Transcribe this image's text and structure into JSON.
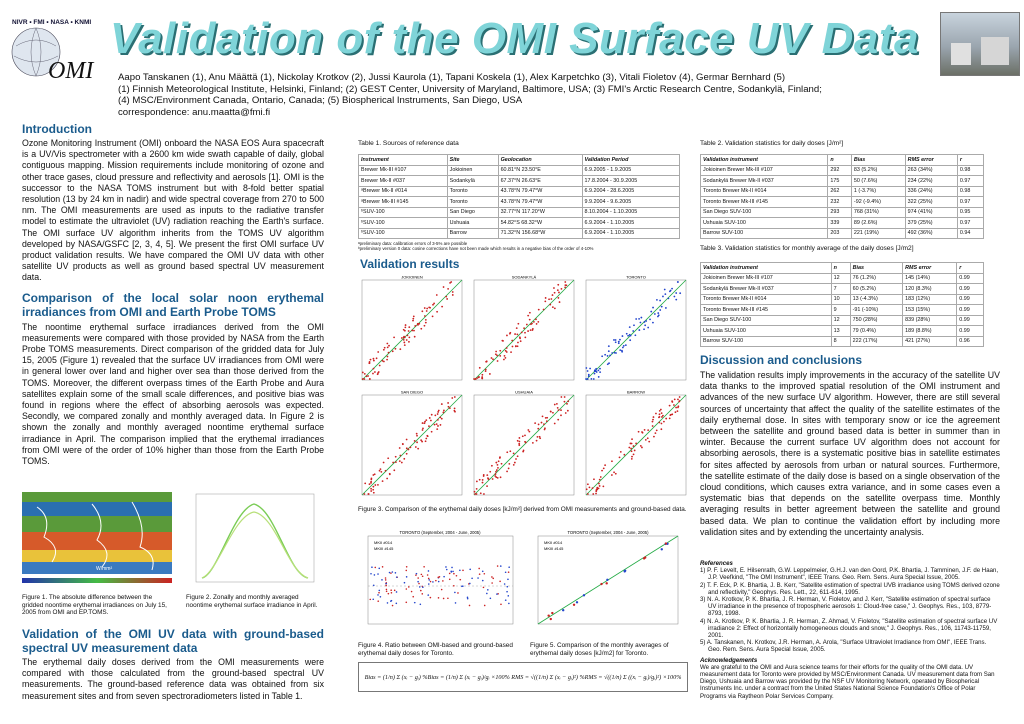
{
  "header": {
    "logo_text": "NIVR • FMI • NASA • KNMI",
    "logo_omi": "OMI",
    "title": "Validation of the OMI Surface UV Data",
    "authors": "Aapo Tanskanen (1), Anu Määttä (1), Nickolay Krotkov (2), Jussi Kaurola (1), Tapani Koskela (1), Alex Karpetchko (3), Vitali Fioletov (4), Germar Bernhard (5)",
    "affil1": "(1) Finnish Meteorological Institute, Helsinki, Finland; (2) GEST Center, University of Maryland, Baltimore, USA; (3) FMI's Arctic Research Centre, Sodankylä, Finland;",
    "affil2": "(4) MSC/Environment Canada, Ontario, Canada; (5) Biospherical Instruments, San Diego, USA",
    "correspondence": "correspondence: anu.maatta@fmi.fi"
  },
  "intro": {
    "heading": "Introduction",
    "text": "Ozone Monitoring Instrument (OMI) onboard the NASA EOS Aura spacecraft is a UV/Vis spectrometer with a 2600 km wide swath capable of daily, global contiguous mapping. Mission requirements include monitoring of ozone and other trace gases, cloud pressure and reflectivity and aerosols [1]. OMI is the successor to the NASA TOMS instrument but with 8-fold better spatial resolution (13 by 24 km in nadir) and wide spectral coverage from 270 to 500 nm. The OMI measurements are used as inputs to the radiative transfer model to estimate the ultraviolet (UV) radiation reaching the Earth's surface. The OMI surface UV algorithm inherits from the TOMS UV algorithm developed by NASA/GSFC [2, 3, 4, 5]. We present the first OMI surface UV product validation results. We have compared the OMI UV data with other satellite UV products as well as ground based spectral UV measurement data."
  },
  "comparison": {
    "heading": "Comparison of the local solar noon erythemal irradiances from OMI and Earth Probe TOMS",
    "text": "The noontime erythemal surface irradiances derived from the OMI measurements were compared with those provided by NASA from the Earth Probe TOMS measurements. Direct comparison of the gridded data for July 15, 2005 (Figure 1) revealed that the surface UV irradiances from OMI were in general lower over land and higher over sea than those derived from the TOMS. Moreover, the different overpass times of the Earth Probe and Aura satellites explain some of the small scale differences, and positive bias was found in regions where the effect of absorbing aerosols was expected. Secondly, we compared zonally and monthly averaged data. In Figure 2 is shown the zonally and monthly averaged noontime erythemal surface irradiance in April. The comparison implied that the erythemal irradiances from OMI were of the order of 10% higher than those from the Earth Probe TOMS.",
    "fig1_caption": "Figure 1. The absolute difference between the gridded noontime erythemal irradiances on July 15, 2005 from OMI and EP.TOMS.",
    "fig2_caption": "Figure 2. Zonally and monthly averaged noontime erythemal surface irradiance in April.",
    "fig1_unit": "W/mm²"
  },
  "validation_ground": {
    "heading": "Validation of the OMI UV data with ground-based spectral UV measurement data",
    "text": "The erythemal daily doses derived from the OMI measurements were compared with those calculated from the ground-based spectral UV measurements. The ground-based reference data was obtained from six measurement sites and from seven spectroradiometers listed in Table 1."
  },
  "table1": {
    "caption": "Table 1. Sources of reference data",
    "headers": [
      "Instrument",
      "Site",
      "Geolocation",
      "Validation Period"
    ],
    "rows": [
      [
        "Brewer Mk-III #107",
        "Jokioinen",
        "60.81°N 23.50°E",
        "6.9.2005 - 1.9.2005"
      ],
      [
        "Brewer Mk-II #037",
        "Sodankylä",
        "67.37°N 26.63°E",
        "17.8.2004 - 30.9.2005"
      ],
      [
        "ᵃBrewer Mk-II #014",
        "Toronto",
        "43.78°N 79.47°W",
        "6.9.2004 - 28.6.2005"
      ],
      [
        "ᵃBrewer Mk-III #145",
        "Toronto",
        "43.78°N 79.47°W",
        "9.9.2004 - 9.6.2005"
      ],
      [
        "ᵇSUV-100",
        "San Diego",
        "32.77°N 117.20°W",
        "8.10.2004 - 1.10.2005"
      ],
      [
        "ᵇSUV-100",
        "Ushuaia",
        "54.82°S 68.32°W",
        "6.9.2004 - 1.10.2005"
      ],
      [
        "ᵇSUV-100",
        "Barrow",
        "71.32°N 156.68°W",
        "6.9.2004 - 1.10.2005"
      ]
    ],
    "note1": "ᵃpreliminary data: calibration errors of 3-5% are possible",
    "note2": "ᵇpreliminary version 0 data: cosine corrections have not been made which results in a negative bias of the order of 4-10%"
  },
  "table2": {
    "caption": "Table 2. Validation statistics for daily doses [J/m²]",
    "headers": [
      "Validation instrument",
      "n",
      "Bias",
      "RMS error",
      "r"
    ],
    "rows": [
      [
        "Jokioinen Brewer Mk-III #107",
        "292",
        "83 (5.2%)",
        "263 (34%)",
        "0.98"
      ],
      [
        "Sodankylä Brewer Mk-II #037",
        "175",
        "50 (7.6%)",
        "234 (22%)",
        "0.97"
      ],
      [
        "Toronto Brewer Mk-II #014",
        "262",
        "1 (-3.7%)",
        "336 (24%)",
        "0.98"
      ],
      [
        "Toronto Brewer Mk-III #145",
        "232",
        "-92 (-9.4%)",
        "322 (25%)",
        "0.97"
      ],
      [
        "San Diego SUV-100",
        "293",
        "768 (31%)",
        "974 (41%)",
        "0.95"
      ],
      [
        "Ushuaia SUV-100",
        "339",
        "89 (2.6%)",
        "379 (25%)",
        "0.97"
      ],
      [
        "Barrow SUV-100",
        "203",
        "221 (19%)",
        "492 (36%)",
        "0.94"
      ]
    ]
  },
  "table3": {
    "caption": "Table 3. Validation statistics for monthly average of the daily doses [J/m2]",
    "headers": [
      "Validation instrument",
      "n",
      "Bias",
      "RMS error",
      "r"
    ],
    "rows": [
      [
        "Jokioinen Brewer Mk-III #107",
        "12",
        "76 (1.2%)",
        "145 (14%)",
        "0.99"
      ],
      [
        "Sodankylä Brewer Mk-II #037",
        "7",
        "60 (5.2%)",
        "120 (8.3%)",
        "0.99"
      ],
      [
        "Toronto Brewer Mk-II #014",
        "10",
        "13 (-4.3%)",
        "183 (12%)",
        "0.99"
      ],
      [
        "Toronto Brewer Mk-III #145",
        "9",
        "-91 (-10%)",
        "153 (15%)",
        "0.99"
      ],
      [
        "San Diego SUV-100",
        "12",
        "750 (28%)",
        "839 (28%)",
        "0.99"
      ],
      [
        "Ushuaia SUV-100",
        "13",
        "79 (0.4%)",
        "189 (8.8%)",
        "0.99"
      ],
      [
        "Barrow SUV-100",
        "8",
        "222 (17%)",
        "421 (27%)",
        "0.96"
      ]
    ]
  },
  "results": {
    "heading": "Validation results",
    "fig3_caption": "Figure 3. Comparison of the erythemal daily doses [kJ/m²] derived from OMI measurements and ground-based data.",
    "fig4_caption": "Figure 4. Ratio between OMI-based and ground-based erythemal daily doses for Toronto.",
    "fig5_caption": "Figure 5. Comparison of the monthly averages of erythemal daily doses [kJ/m2] for Toronto.",
    "scatter_titles": [
      "JOKIOINEN",
      "SODANKYLÄ",
      "TORONTO",
      "SAN DIEGO",
      "USHUAIA",
      "BARROW"
    ],
    "fig4_title": "TORONTO (September, 2004 - June, 2005)",
    "fig5_title": "TORONTO (September, 2004 - June, 2005)",
    "fig4_legend": [
      "MKII #014",
      "MKIII #145"
    ],
    "fig5_legend": [
      "MKII #014",
      "MKIII #145"
    ],
    "equation": "Bias = (1/n) Σ (xᵢ − gᵢ)   %Bias = (1/n) Σ (xᵢ − gᵢ)/gᵢ ×100%   RMS = √((1/n) Σ (xᵢ − gᵢ)²)   %RMS = √((1/n) Σ ((xᵢ − gᵢ)/gᵢ)²) ×100%"
  },
  "discussion": {
    "heading": "Discussion and conclusions",
    "text": "The validation results imply improvements in the accuracy of the satellite UV data thanks to the improved spatial resolution of the OMI instrument and advances of the new surface UV algorithm. However, there are still several sources of uncertainty that affect the quality of the satellite estimates of the daily erythemal dose. In sites with temporary snow or ice the agreement between the satellite and ground based data is better in summer than in winter. Because the current surface UV algorithm does not account for absorbing aerosols, there is a systematic positive bias in satellite estimates for sites affected by aerosols from urban or natural sources. Furthermore, the satellite estimate of the daily dose is based on a single observation of the cloud conditions, which causes extra variance, and in some cases even a systematic bias that depends on the satellite overpass time. Monthly averaging results in better agreement between the satellite and ground based data. We plan to continue the validation effort by including more validation sites and by extending the uncertainty analysis."
  },
  "references": {
    "heading": "References",
    "items": [
      "1) P. F. Levelt, E. Hilsenrath, G.W. Leppelmeier, G.H.J. van den Oord, P.K. Bhartia, J. Tamminen, J.F. de Haan, J.P. Veefkind, \"The OMI Instrument\", IEEE Trans. Geo. Rem. Sens. Aura Special Issue, 2005.",
      "2) T. F. Eck, P. K. Bhartia, J. B. Kerr, \"Satellite estimation of spectral UVB irradiance using TOMS derived ozone and reflectivity,\" Geophys. Res. Lett., 22, 611-614, 1995.",
      "3) N. A. Krotkov, P. K. Bhartia, J. R. Herman, V. Fioletov, and J. Kerr, \"Satellite estimation of spectral surface UV irradiance in the presence of tropospheric aerosols 1: Cloud-free case,\" J. Geophys. Res., 103, 8779-8793, 1998.",
      "4) N. A. Krotkov, P. K. Bhartia, J. R. Herman, Z. Ahmad, V. Fioletov, \"Satellite estimation of spectral surface UV irradiance 2: Effect of horizontally homogeneous clouds and snow,\" J. Geophys. Res., 106, 11743-11759, 2001.",
      "5) A. Tanskanen, N. Krotkov, J.R. Herman, A. Arola, \"Surface Ultraviolet Irradiance from OMI\", IEEE Trans. Geo. Rem. Sens. Aura Special Issue, 2005."
    ]
  },
  "acknowledgements": {
    "heading": "Acknowledgements",
    "text": "We are grateful to the OMI and Aura science teams for their efforts for the quality of the OMI data. UV measurement data for Toronto were provided by MSC/Environment Canada. UV measurement data from San Diego, Ushuaia and Barrow was provided by the NSF UV Monitoring Network, operated by Biospherical Instruments Inc. under a contract from the United States National Science Foundation's Office of Polar Programs via Raytheon Polar Services Company."
  },
  "colors": {
    "title": "#7fd4d8",
    "title_shadow": "#2a6f73",
    "heading": "#1a5b8c",
    "scatter": "#cc2222",
    "scatter2": "#2244cc",
    "line": "#22aa44"
  }
}
